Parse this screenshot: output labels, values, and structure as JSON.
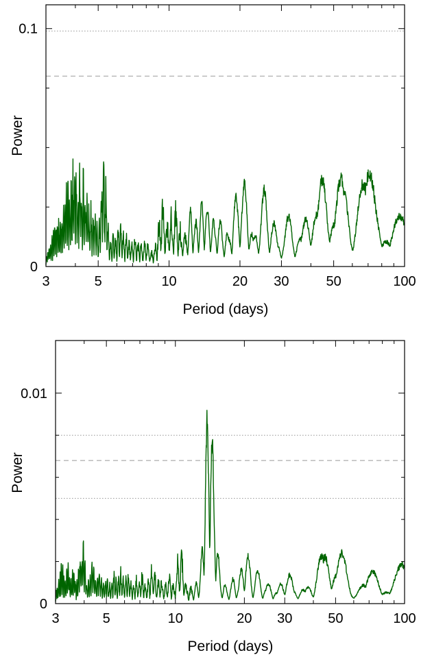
{
  "chart_data": [
    {
      "type": "line",
      "title": "",
      "xlabel": "Period (days)",
      "ylabel": "Power",
      "xscale": "log",
      "xlim": [
        3,
        100
      ],
      "ylim": [
        0,
        0.11
      ],
      "x_ticks": [
        3,
        5,
        10,
        20,
        30,
        50,
        100
      ],
      "x_tick_labels": [
        "3",
        "5",
        "10",
        "20",
        "30",
        "50",
        "100"
      ],
      "y_ticks": [
        0,
        0.1
      ],
      "y_tick_labels": [
        "0",
        "0.1"
      ],
      "y_minor_ticks": [
        0.025,
        0.05,
        0.075
      ],
      "grid": false,
      "line_color": "#006400",
      "threshold_color": "#999999",
      "thresholds": [
        {
          "value": 0.099,
          "style": "dotted"
        },
        {
          "value": 0.08,
          "style": "dashed"
        }
      ],
      "peaks": [
        [
          3.12,
          0.012
        ],
        [
          3.25,
          0.02
        ],
        [
          3.35,
          0.028
        ],
        [
          3.45,
          0.021
        ],
        [
          3.55,
          0.031
        ],
        [
          3.65,
          0.036
        ],
        [
          3.72,
          0.039
        ],
        [
          3.78,
          0.035
        ],
        [
          3.85,
          0.045
        ],
        [
          3.9,
          0.047
        ],
        [
          3.97,
          0.049
        ],
        [
          4.05,
          0.038
        ],
        [
          4.12,
          0.032
        ],
        [
          4.18,
          0.046
        ],
        [
          4.25,
          0.028
        ],
        [
          4.32,
          0.044
        ],
        [
          4.4,
          0.029
        ],
        [
          4.48,
          0.036
        ],
        [
          4.56,
          0.025
        ],
        [
          4.65,
          0.03
        ],
        [
          4.75,
          0.022
        ],
        [
          4.85,
          0.027
        ],
        [
          4.95,
          0.015
        ],
        [
          5.05,
          0.019
        ],
        [
          5.15,
          0.012
        ],
        [
          5.28,
          0.048
        ],
        [
          5.4,
          0.018
        ],
        [
          5.55,
          0.014
        ],
        [
          5.7,
          0.01
        ],
        [
          5.85,
          0.016
        ],
        [
          6.0,
          0.012
        ],
        [
          6.15,
          0.02
        ],
        [
          6.3,
          0.018
        ],
        [
          6.45,
          0.011
        ],
        [
          6.6,
          0.015
        ],
        [
          6.8,
          0.013
        ],
        [
          7.0,
          0.009
        ],
        [
          7.2,
          0.014
        ],
        [
          7.45,
          0.012
        ],
        [
          7.7,
          0.008
        ],
        [
          7.95,
          0.013
        ],
        [
          8.2,
          0.01
        ],
        [
          8.5,
          0.007
        ],
        [
          8.8,
          0.011
        ],
        [
          9.1,
          0.006
        ],
        [
          9.35,
          0.031
        ],
        [
          9.6,
          0.023
        ],
        [
          9.85,
          0.015
        ],
        [
          10.1,
          0.028
        ],
        [
          10.35,
          0.024
        ],
        [
          10.65,
          0.029
        ],
        [
          10.9,
          0.022
        ],
        [
          11.2,
          0.014
        ],
        [
          11.5,
          0.019
        ],
        [
          11.8,
          0.016
        ],
        [
          12.1,
          0.022
        ],
        [
          12.4,
          0.026
        ],
        [
          12.7,
          0.013
        ],
        [
          13.0,
          0.018
        ],
        [
          13.35,
          0.024
        ],
        [
          13.7,
          0.02
        ],
        [
          14.0,
          0.031
        ],
        [
          14.4,
          0.025
        ],
        [
          14.8,
          0.026
        ],
        [
          15.2,
          0.022
        ],
        [
          15.7,
          0.017
        ],
        [
          16.2,
          0.022
        ],
        [
          16.7,
          0.015
        ],
        [
          17.2,
          0.018
        ],
        [
          17.8,
          0.011
        ],
        [
          18.5,
          0.016
        ],
        [
          19.3,
          0.033
        ],
        [
          20.1,
          0.036
        ],
        [
          21.0,
          0.038
        ],
        [
          22.0,
          0.009
        ],
        [
          23.3,
          0.011
        ],
        [
          24.5,
          0.025
        ],
        [
          25.5,
          0.035
        ],
        [
          27.0,
          0.024
        ],
        [
          28.5,
          0.003
        ],
        [
          30.3,
          0.016
        ],
        [
          32.5,
          0.023
        ],
        [
          34.5,
          0.018
        ],
        [
          37.0,
          0.012
        ],
        [
          40.2,
          0.036
        ],
        [
          43.0,
          0.018
        ],
        [
          46.5,
          0.05
        ],
        [
          50.0,
          0.025
        ],
        [
          54.0,
          0.04
        ],
        [
          56.5,
          0.041
        ],
        [
          65.0,
          0.041
        ],
        [
          73.0,
          0.048
        ],
        [
          76.0,
          0.045
        ],
        [
          85.0,
          0.013
        ],
        [
          95.0,
          0.023
        ]
      ]
    },
    {
      "type": "line",
      "title": "",
      "xlabel": "Period (days)",
      "ylabel": "Power",
      "xscale": "log",
      "xlim": [
        3,
        100
      ],
      "ylim": [
        0,
        0.0125
      ],
      "x_ticks": [
        3,
        5,
        10,
        20,
        30,
        50,
        100
      ],
      "x_tick_labels": [
        "3",
        "5",
        "10",
        "20",
        "30",
        "50",
        "100"
      ],
      "y_ticks": [
        0,
        0.01
      ],
      "y_tick_labels": [
        "0",
        "0.01"
      ],
      "y_minor_ticks": [
        0.002,
        0.004,
        0.006,
        0.008
      ],
      "grid": false,
      "line_color": "#006400",
      "threshold_color": "#999999",
      "thresholds": [
        {
          "value": 0.008,
          "style": "dotted"
        },
        {
          "value": 0.0068,
          "style": "dashed"
        },
        {
          "value": 0.005,
          "style": "dotted"
        }
      ],
      "peaks": [
        [
          3.1,
          0.0012
        ],
        [
          3.2,
          0.0022
        ],
        [
          3.3,
          0.0015
        ],
        [
          3.4,
          0.002
        ],
        [
          3.5,
          0.0013
        ],
        [
          3.6,
          0.0018
        ],
        [
          3.75,
          0.0012
        ],
        [
          3.88,
          0.0028
        ],
        [
          3.95,
          0.0032
        ],
        [
          4.05,
          0.0016
        ],
        [
          4.2,
          0.0014
        ],
        [
          4.35,
          0.0021
        ],
        [
          4.5,
          0.0013
        ],
        [
          4.65,
          0.0017
        ],
        [
          4.8,
          0.0012
        ],
        [
          5.0,
          0.0015
        ],
        [
          5.2,
          0.0011
        ],
        [
          5.4,
          0.0016
        ],
        [
          5.6,
          0.0013
        ],
        [
          5.8,
          0.0018
        ],
        [
          6.0,
          0.0012
        ],
        [
          6.2,
          0.0016
        ],
        [
          6.5,
          0.0013
        ],
        [
          6.8,
          0.0015
        ],
        [
          7.1,
          0.0017
        ],
        [
          7.4,
          0.0011
        ],
        [
          7.7,
          0.0014
        ],
        [
          8.0,
          0.0021
        ],
        [
          8.3,
          0.0009
        ],
        [
          8.6,
          0.0014
        ],
        [
          9.0,
          0.001
        ],
        [
          9.4,
          0.0016
        ],
        [
          9.8,
          0.0008
        ],
        [
          10.2,
          0.0012
        ],
        [
          10.5,
          0.0029
        ],
        [
          11.0,
          0.0008
        ],
        [
          11.5,
          0.001
        ],
        [
          12.0,
          0.0007
        ],
        [
          12.6,
          0.0012
        ],
        [
          13.3,
          0.0014
        ],
        [
          13.8,
          0.0042
        ],
        [
          14.05,
          0.0105
        ],
        [
          14.25,
          0.0038
        ],
        [
          14.45,
          0.0065
        ],
        [
          14.8,
          0.0012
        ],
        [
          15.4,
          0.0008
        ],
        [
          16.1,
          0.0011
        ],
        [
          16.9,
          0.0007
        ],
        [
          18.0,
          0.0013
        ],
        [
          19.0,
          0.0009
        ],
        [
          20.3,
          0.0027
        ],
        [
          21.5,
          0.0006
        ],
        [
          22.8,
          0.0017
        ],
        [
          24.3,
          0.0009
        ],
        [
          26.0,
          0.0011
        ],
        [
          27.6,
          0.0004
        ],
        [
          29.5,
          0.0008
        ],
        [
          30.5,
          0.0018
        ],
        [
          32.3,
          0.0007
        ],
        [
          34.5,
          0.001
        ],
        [
          37.5,
          0.0006
        ],
        [
          40.0,
          0.0013
        ],
        [
          43.0,
          0.0025
        ],
        [
          45.5,
          0.0004
        ],
        [
          47.0,
          0.0033
        ],
        [
          50.0,
          0.0013
        ],
        [
          53.0,
          0.0026
        ],
        [
          57.0,
          0.0005
        ],
        [
          60.0,
          0.0011
        ],
        [
          64.0,
          0.0011
        ],
        [
          69.0,
          0.0009
        ],
        [
          76.0,
          0.0023
        ],
        [
          82.0,
          0.0008
        ],
        [
          90.0,
          0.0005
        ],
        [
          98.0,
          0.002
        ]
      ]
    }
  ]
}
